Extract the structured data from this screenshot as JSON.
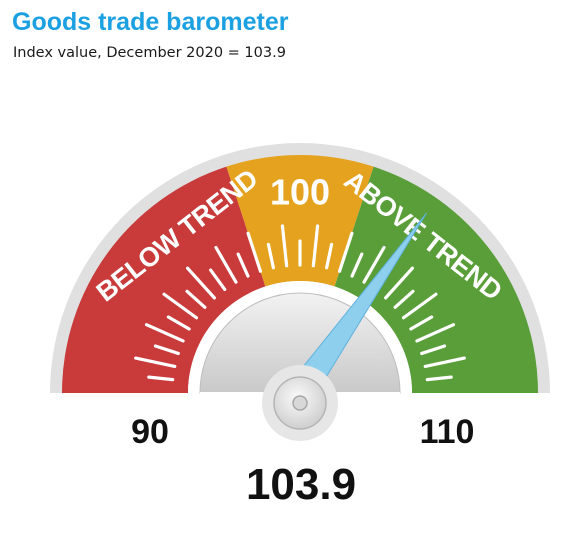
{
  "title": "Goods trade barometer",
  "subtitle": "Index value, December 2020 = 103.9",
  "colors": {
    "title": "#1ba0e2",
    "below": "#c93a3a",
    "middle": "#e5a21f",
    "above": "#5a9e3a",
    "needle": "#8ecfee",
    "rim": "#e0e0e0"
  },
  "chart_data": {
    "type": "gauge",
    "min": 90,
    "max": 110,
    "value": 103.9,
    "value_label": "103.9",
    "min_label": "90",
    "max_label": "110",
    "zones": [
      {
        "name": "below",
        "label": "BELOW TREND",
        "from": 90,
        "to": 98
      },
      {
        "name": "middle",
        "label": "100",
        "from": 98,
        "to": 102
      },
      {
        "name": "above",
        "label": "ABOVE TREND",
        "from": 102,
        "to": 110
      }
    ]
  }
}
